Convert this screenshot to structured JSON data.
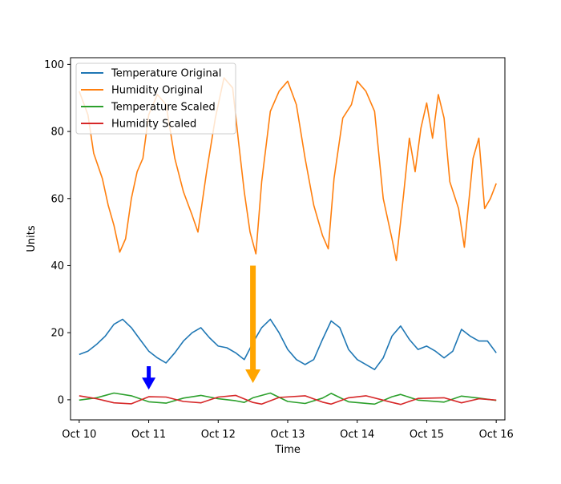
{
  "chart_data": {
    "type": "line",
    "xlabel": "Time",
    "ylabel": "Units",
    "xlim": [
      "2022-10-09T21:00",
      "2022-10-16T03:00"
    ],
    "ylim": [
      -6.0,
      102.0
    ],
    "xticks": [
      {
        "x": "2022-10-10",
        "label": "Oct 10"
      },
      {
        "x": "2022-10-11",
        "label": "Oct 11"
      },
      {
        "x": "2022-10-12",
        "label": "Oct 12"
      },
      {
        "x": "2022-10-13",
        "label": "Oct 13"
      },
      {
        "x": "2022-10-14",
        "label": "Oct 14"
      },
      {
        "x": "2022-10-15",
        "label": "Oct 15"
      },
      {
        "x": "2022-10-16",
        "label": "Oct 16"
      }
    ],
    "yticks": [
      {
        "y": 0,
        "label": "0"
      },
      {
        "y": 20,
        "label": "20"
      },
      {
        "y": 40,
        "label": "40"
      },
      {
        "y": 60,
        "label": "60"
      },
      {
        "y": 80,
        "label": "80"
      },
      {
        "y": 100,
        "label": "100"
      }
    ],
    "grid": false,
    "legend_position": "top-left",
    "series": [
      {
        "name": "Temperature Original",
        "color": "#1f77b4",
        "points": [
          [
            "2022-10-10T00:00",
            13.5
          ],
          [
            "2022-10-10T03:00",
            14.5
          ],
          [
            "2022-10-10T06:00",
            16.5
          ],
          [
            "2022-10-10T09:00",
            19.0
          ],
          [
            "2022-10-10T12:00",
            22.5
          ],
          [
            "2022-10-10T15:00",
            24.0
          ],
          [
            "2022-10-10T18:00",
            21.5
          ],
          [
            "2022-10-10T21:00",
            18.0
          ],
          [
            "2022-10-11T00:00",
            14.5
          ],
          [
            "2022-10-11T03:00",
            12.5
          ],
          [
            "2022-10-11T06:00",
            11.0
          ],
          [
            "2022-10-11T09:00",
            14.0
          ],
          [
            "2022-10-11T12:00",
            17.5
          ],
          [
            "2022-10-11T15:00",
            20.0
          ],
          [
            "2022-10-11T18:00",
            21.5
          ],
          [
            "2022-10-11T21:00",
            18.5
          ],
          [
            "2022-10-12T00:00",
            16.0
          ],
          [
            "2022-10-12T03:00",
            15.5
          ],
          [
            "2022-10-12T06:00",
            14.0
          ],
          [
            "2022-10-12T09:00",
            12.0
          ],
          [
            "2022-10-12T12:00",
            17.0
          ],
          [
            "2022-10-12T15:00",
            21.5
          ],
          [
            "2022-10-12T18:00",
            24.0
          ],
          [
            "2022-10-12T21:00",
            20.0
          ],
          [
            "2022-10-13T00:00",
            15.0
          ],
          [
            "2022-10-13T03:00",
            12.0
          ],
          [
            "2022-10-13T06:00",
            10.5
          ],
          [
            "2022-10-13T09:00",
            12.0
          ],
          [
            "2022-10-13T12:00",
            18.0
          ],
          [
            "2022-10-13T15:00",
            23.5
          ],
          [
            "2022-10-13T18:00",
            21.5
          ],
          [
            "2022-10-13T21:00",
            15.0
          ],
          [
            "2022-10-14T00:00",
            12.0
          ],
          [
            "2022-10-14T03:00",
            10.5
          ],
          [
            "2022-10-14T06:00",
            9.0
          ],
          [
            "2022-10-14T09:00",
            12.5
          ],
          [
            "2022-10-14T12:00",
            19.0
          ],
          [
            "2022-10-14T15:00",
            22.0
          ],
          [
            "2022-10-14T18:00",
            18.0
          ],
          [
            "2022-10-14T21:00",
            15.0
          ],
          [
            "2022-10-15T00:00",
            16.0
          ],
          [
            "2022-10-15T03:00",
            14.5
          ],
          [
            "2022-10-15T06:00",
            12.5
          ],
          [
            "2022-10-15T09:00",
            14.5
          ],
          [
            "2022-10-15T12:00",
            21.0
          ],
          [
            "2022-10-15T15:00",
            19.0
          ],
          [
            "2022-10-15T18:00",
            17.5
          ],
          [
            "2022-10-15T21:00",
            17.5
          ],
          [
            "2022-10-16T00:00",
            14.0
          ]
        ]
      },
      {
        "name": "Humidity Original",
        "color": "#ff7f0e",
        "points": [
          [
            "2022-10-10T00:00",
            92.0
          ],
          [
            "2022-10-10T03:00",
            85.0
          ],
          [
            "2022-10-10T05:00",
            73.5
          ],
          [
            "2022-10-10T08:00",
            66.0
          ],
          [
            "2022-10-10T10:00",
            58.0
          ],
          [
            "2022-10-10T12:00",
            52.0
          ],
          [
            "2022-10-10T14:00",
            44.0
          ],
          [
            "2022-10-10T16:00",
            48.0
          ],
          [
            "2022-10-10T18:00",
            60.0
          ],
          [
            "2022-10-10T20:00",
            68.0
          ],
          [
            "2022-10-10T22:00",
            72.0
          ],
          [
            "2022-10-11T00:00",
            85.0
          ],
          [
            "2022-10-11T03:00",
            91.0
          ],
          [
            "2022-10-11T06:00",
            88.0
          ],
          [
            "2022-10-11T09:00",
            72.0
          ],
          [
            "2022-10-11T12:00",
            62.0
          ],
          [
            "2022-10-11T15:00",
            55.0
          ],
          [
            "2022-10-11T17:00",
            50.0
          ],
          [
            "2022-10-11T20:00",
            68.0
          ],
          [
            "2022-10-11T23:00",
            84.0
          ],
          [
            "2022-10-12T02:00",
            96.0
          ],
          [
            "2022-10-12T05:00",
            93.0
          ],
          [
            "2022-10-12T07:00",
            77.0
          ],
          [
            "2022-10-12T09:00",
            62.0
          ],
          [
            "2022-10-12T11:00",
            50.0
          ],
          [
            "2022-10-12T13:00",
            43.5
          ],
          [
            "2022-10-12T15:00",
            65.0
          ],
          [
            "2022-10-12T18:00",
            86.0
          ],
          [
            "2022-10-12T21:00",
            92.0
          ],
          [
            "2022-10-13T00:00",
            95.0
          ],
          [
            "2022-10-13T03:00",
            88.0
          ],
          [
            "2022-10-13T06:00",
            72.0
          ],
          [
            "2022-10-13T09:00",
            58.0
          ],
          [
            "2022-10-13T12:00",
            49.0
          ],
          [
            "2022-10-13T14:00",
            45.0
          ],
          [
            "2022-10-13T16:00",
            66.0
          ],
          [
            "2022-10-13T19:00",
            84.0
          ],
          [
            "2022-10-13T22:00",
            88.0
          ],
          [
            "2022-10-14T00:00",
            95.0
          ],
          [
            "2022-10-14T03:00",
            92.0
          ],
          [
            "2022-10-14T06:00",
            86.0
          ],
          [
            "2022-10-14T09:00",
            60.0
          ],
          [
            "2022-10-14T12:00",
            48.0
          ],
          [
            "2022-10-14T13:30",
            41.5
          ],
          [
            "2022-10-14T16:00",
            61.0
          ],
          [
            "2022-10-14T18:00",
            78.0
          ],
          [
            "2022-10-14T20:00",
            68.0
          ],
          [
            "2022-10-14T22:00",
            81.0
          ],
          [
            "2022-10-15T00:00",
            88.5
          ],
          [
            "2022-10-15T02:00",
            78.0
          ],
          [
            "2022-10-15T04:00",
            91.0
          ],
          [
            "2022-10-15T06:00",
            84.0
          ],
          [
            "2022-10-15T08:00",
            65.0
          ],
          [
            "2022-10-15T11:00",
            57.0
          ],
          [
            "2022-10-15T13:00",
            45.5
          ],
          [
            "2022-10-15T16:00",
            72.0
          ],
          [
            "2022-10-15T18:00",
            78.0
          ],
          [
            "2022-10-15T20:00",
            57.0
          ],
          [
            "2022-10-15T22:00",
            60.0
          ],
          [
            "2022-10-16T00:00",
            64.5
          ]
        ]
      },
      {
        "name": "Temperature Scaled",
        "color": "#2ca02c",
        "points": [
          [
            "2022-10-10T00:00",
            -0.1
          ],
          [
            "2022-10-10T06:00",
            0.6
          ],
          [
            "2022-10-10T12:00",
            2.0
          ],
          [
            "2022-10-10T18:00",
            1.2
          ],
          [
            "2022-10-11T00:00",
            -0.6
          ],
          [
            "2022-10-11T06:00",
            -1.0
          ],
          [
            "2022-10-11T12:00",
            0.5
          ],
          [
            "2022-10-11T18:00",
            1.3
          ],
          [
            "2022-10-12T00:00",
            0.3
          ],
          [
            "2022-10-12T06:00",
            -0.3
          ],
          [
            "2022-10-12T09:00",
            -0.8
          ],
          [
            "2022-10-12T12:00",
            0.6
          ],
          [
            "2022-10-12T18:00",
            2.0
          ],
          [
            "2022-10-13T00:00",
            -0.5
          ],
          [
            "2022-10-13T06:00",
            -1.1
          ],
          [
            "2022-10-13T12:00",
            0.5
          ],
          [
            "2022-10-13T15:00",
            1.9
          ],
          [
            "2022-10-13T21:00",
            -0.6
          ],
          [
            "2022-10-14T06:00",
            -1.3
          ],
          [
            "2022-10-14T12:00",
            0.9
          ],
          [
            "2022-10-14T15:00",
            1.6
          ],
          [
            "2022-10-14T21:00",
            -0.1
          ],
          [
            "2022-10-15T06:00",
            -0.7
          ],
          [
            "2022-10-15T12:00",
            1.1
          ],
          [
            "2022-10-15T18:00",
            0.5
          ],
          [
            "2022-10-16T00:00",
            -0.2
          ]
        ]
      },
      {
        "name": "Humidity Scaled",
        "color": "#d62728",
        "points": [
          [
            "2022-10-10T00:00",
            1.2
          ],
          [
            "2022-10-10T06:00",
            0.3
          ],
          [
            "2022-10-10T12:00",
            -0.9
          ],
          [
            "2022-10-10T18:00",
            -1.2
          ],
          [
            "2022-10-11T00:00",
            0.9
          ],
          [
            "2022-10-11T06:00",
            0.8
          ],
          [
            "2022-10-11T12:00",
            -0.5
          ],
          [
            "2022-10-11T18:00",
            -0.9
          ],
          [
            "2022-10-12T00:00",
            0.8
          ],
          [
            "2022-10-12T06:00",
            1.3
          ],
          [
            "2022-10-12T12:00",
            -0.8
          ],
          [
            "2022-10-12T15:00",
            -1.3
          ],
          [
            "2022-10-12T21:00",
            0.7
          ],
          [
            "2022-10-13T06:00",
            1.2
          ],
          [
            "2022-10-13T12:00",
            -0.7
          ],
          [
            "2022-10-13T15:00",
            -1.3
          ],
          [
            "2022-10-13T21:00",
            0.6
          ],
          [
            "2022-10-14T03:00",
            1.2
          ],
          [
            "2022-10-14T12:00",
            -0.8
          ],
          [
            "2022-10-14T15:00",
            -1.4
          ],
          [
            "2022-10-14T21:00",
            0.4
          ],
          [
            "2022-10-15T06:00",
            0.6
          ],
          [
            "2022-10-15T12:00",
            -0.9
          ],
          [
            "2022-10-15T18:00",
            0.3
          ],
          [
            "2022-10-16T00:00",
            -0.1
          ]
        ]
      }
    ],
    "annotations": [
      {
        "type": "arrow",
        "color": "#0000ff",
        "from": [
          "2022-10-11T00:00",
          10.0
        ],
        "to": [
          "2022-10-11T00:00",
          3.0
        ]
      },
      {
        "type": "arrow",
        "color": "#ffa500",
        "from": [
          "2022-10-12T12:00",
          40.0
        ],
        "to": [
          "2022-10-12T12:00",
          5.0
        ]
      }
    ]
  }
}
